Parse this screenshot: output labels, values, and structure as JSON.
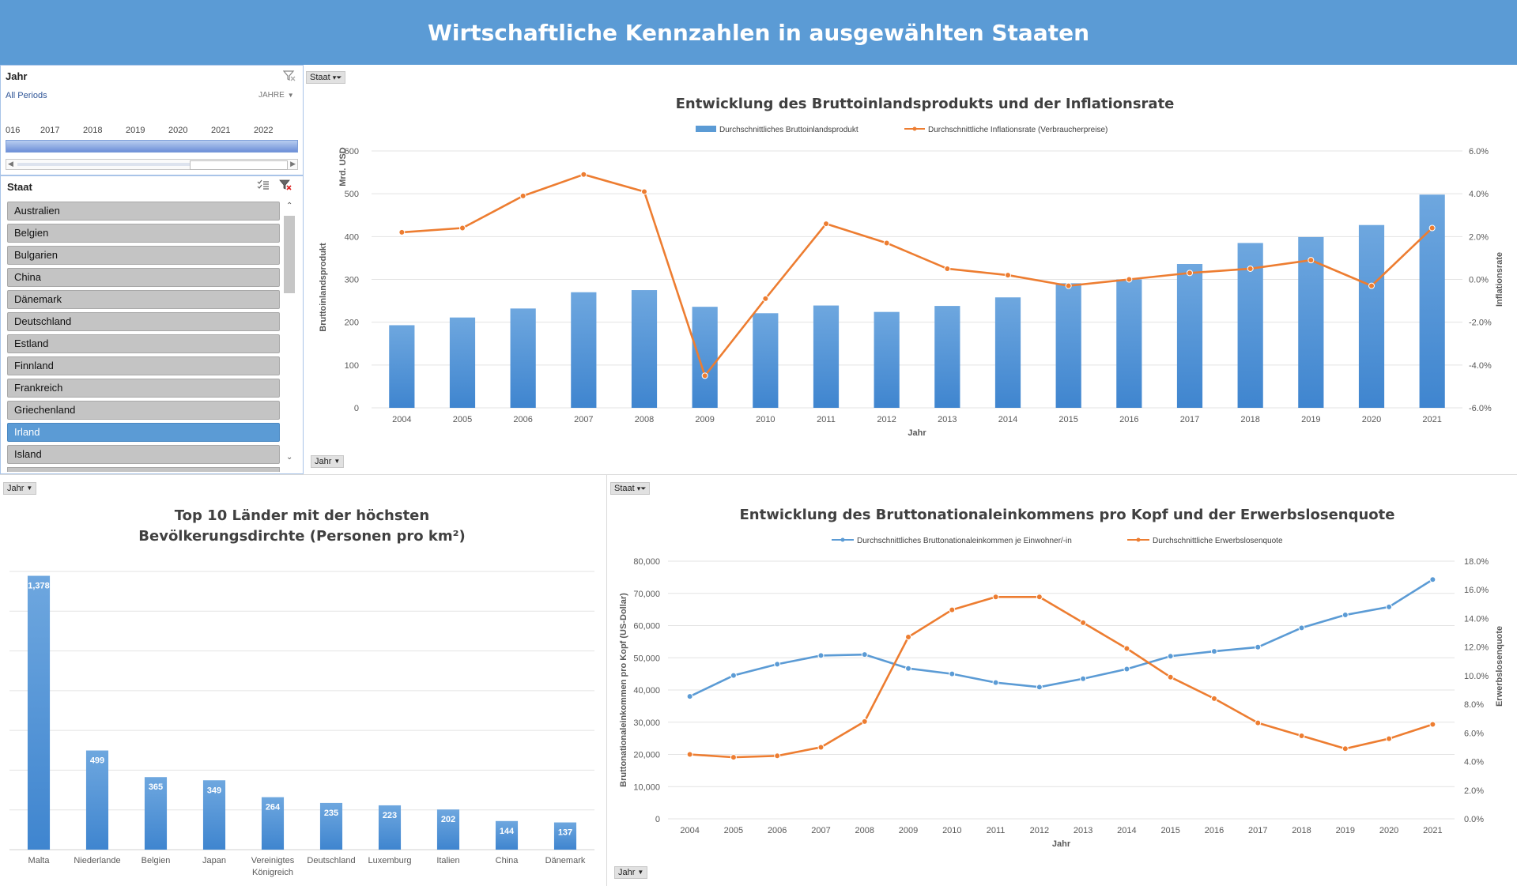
{
  "header": {
    "title": "Wirtschaftliche Kennzahlen in ausgewählten Staaten"
  },
  "timeline": {
    "title": "Jahr",
    "all_periods": "All Periods",
    "level": "JAHRE",
    "years": [
      "016",
      "2017",
      "2018",
      "2019",
      "2020",
      "2021",
      "2022"
    ]
  },
  "staat_slicer": {
    "title": "Staat",
    "items": [
      "Australien",
      "Belgien",
      "Bulgarien",
      "China",
      "Dänemark",
      "Deutschland",
      "Estland",
      "Finnland",
      "Frankreich",
      "Griechenland",
      "Irland",
      "Island"
    ],
    "selected": "Irland"
  },
  "filters": {
    "staat": "Staat",
    "jahr": "Jahr"
  },
  "colors": {
    "blue": "#5b9bd5",
    "orange": "#ed7d31"
  },
  "chart1": {
    "chart_data": {
      "type": "bar",
      "title": "Entwicklung des Bruttoinlandsprodukts und der Inflationsrate",
      "categories": [
        "2004",
        "2005",
        "2006",
        "2007",
        "2008",
        "2009",
        "2010",
        "2011",
        "2012",
        "2013",
        "2014",
        "2015",
        "2016",
        "2017",
        "2018",
        "2019",
        "2020",
        "2021"
      ],
      "series": [
        {
          "name": "Durchschnittliches Bruttoinlandsprodukt",
          "type": "bar",
          "axis": "left",
          "values": [
            193,
            211,
            232,
            270,
            275,
            236,
            221,
            239,
            224,
            238,
            258,
            291,
            300,
            336,
            385,
            399,
            427,
            498
          ]
        },
        {
          "name": "Durchschnittliche Inflationsrate (Verbraucherpreise)",
          "type": "line",
          "axis": "right",
          "values": [
            2.2,
            2.4,
            3.9,
            4.9,
            4.1,
            -4.5,
            -0.9,
            2.6,
            1.7,
            0.5,
            0.2,
            -0.3,
            0.0,
            0.3,
            0.5,
            0.9,
            -0.3,
            2.4
          ]
        }
      ],
      "xlabel": "Jahr",
      "ylabel": "Bruttoinlandsprodukt",
      "yunit": "Mrd. USD",
      "ylabel_right": "Inflationsrate",
      "ylim": [
        0,
        600
      ],
      "yticks": [
        "0",
        "100",
        "200",
        "300",
        "400",
        "500",
        "600"
      ],
      "ylim_right": [
        -6,
        6
      ],
      "yticks_right": [
        "-6.0%",
        "-4.0%",
        "-2.0%",
        "0.0%",
        "2.0%",
        "4.0%",
        "6.0%"
      ],
      "legend": "top"
    }
  },
  "chart2": {
    "chart_data": {
      "type": "bar",
      "title": [
        "Top 10 Länder mit der höchsten",
        "Bevölkerungsdirchte (Personen pro km²)"
      ],
      "categories": [
        "Malta",
        "Niederlande",
        "Belgien",
        "Japan",
        "Vereinigtes Königreich",
        "Deutschland",
        "Luxemburg",
        "Italien",
        "China",
        "Dänemark"
      ],
      "category_lines": [
        [
          "Malta"
        ],
        [
          "Niederlande"
        ],
        [
          "Belgien"
        ],
        [
          "Japan"
        ],
        [
          "Vereinigtes",
          "Königreich"
        ],
        [
          "Deutschland"
        ],
        [
          "Luxemburg"
        ],
        [
          "Italien"
        ],
        [
          "China"
        ],
        [
          "Dänemark"
        ]
      ],
      "values": [
        1378,
        499,
        365,
        349,
        264,
        235,
        223,
        202,
        144,
        137
      ],
      "data_labels": [
        "1,378",
        "499",
        "365",
        "349",
        "264",
        "235",
        "223",
        "202",
        "144",
        "137"
      ],
      "ylim": [
        0,
        1400
      ],
      "grid": true
    }
  },
  "chart3": {
    "chart_data": {
      "type": "line",
      "title": "Entwicklung des Bruttonationaleinkommens pro Kopf und der Erwerbslosenquote",
      "categories": [
        "2004",
        "2005",
        "2006",
        "2007",
        "2008",
        "2009",
        "2010",
        "2011",
        "2012",
        "2013",
        "2014",
        "2015",
        "2016",
        "2017",
        "2018",
        "2019",
        "2020",
        "2021"
      ],
      "series": [
        {
          "name": "Durchschnittliches Bruttonationaleinkommen je Einwohner/-in",
          "axis": "left",
          "values": [
            38000,
            44500,
            48000,
            50700,
            51000,
            46700,
            45000,
            42300,
            40900,
            43500,
            46500,
            50500,
            52000,
            53300,
            59300,
            63300,
            65800,
            74300
          ]
        },
        {
          "name": "Durchschnittliche Erwerbslosenquote",
          "axis": "right",
          "values": [
            4.5,
            4.3,
            4.4,
            5.0,
            6.8,
            12.7,
            14.6,
            15.5,
            15.5,
            13.7,
            11.9,
            9.9,
            8.4,
            6.7,
            5.8,
            4.9,
            5.6,
            6.6
          ]
        }
      ],
      "xlabel": "Jahr",
      "ylabel": "Bruttonationaleinkommen pro Kopf (US-Dollar)",
      "ylabel_right": "Erwerbslosenquote",
      "ylim": [
        0,
        80000
      ],
      "yticks": [
        "0",
        "10,000",
        "20,000",
        "30,000",
        "40,000",
        "50,000",
        "60,000",
        "70,000",
        "80,000"
      ],
      "ylim_right": [
        0,
        18
      ],
      "yticks_right": [
        "0.0%",
        "2.0%",
        "4.0%",
        "6.0%",
        "8.0%",
        "10.0%",
        "12.0%",
        "14.0%",
        "16.0%",
        "18.0%"
      ],
      "legend": "top"
    }
  }
}
